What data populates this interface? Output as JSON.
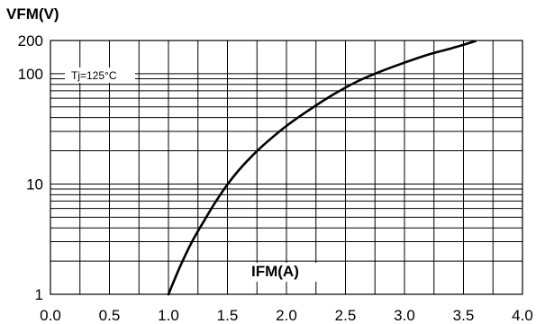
{
  "chart_data": {
    "type": "line",
    "ylabel": "VFM(V)",
    "xlabel": "IFM(A)",
    "x_scale": "linear",
    "y_scale": "log",
    "xlim": [
      0.0,
      4.0
    ],
    "ylim": [
      1,
      200
    ],
    "x_ticks": [
      "0.0",
      "0.5",
      "1.0",
      "1.5",
      "2.0",
      "2.5",
      "3.0",
      "3.5",
      "4.0"
    ],
    "y_ticks": [
      {
        "value": 1,
        "label": "1"
      },
      {
        "value": 10,
        "label": "10"
      },
      {
        "value": 100,
        "label": "100"
      },
      {
        "value": 200,
        "label": "200"
      }
    ],
    "grid": true,
    "annotation": "Tj=125°C",
    "series": [
      {
        "x": [
          1.0,
          1.1,
          1.2,
          1.3,
          1.4,
          1.5,
          1.6,
          1.7,
          1.8,
          2.0,
          2.2,
          2.4,
          2.6,
          2.8,
          3.0,
          3.2,
          3.4,
          3.6
        ],
        "y": [
          1.0,
          1.8,
          3.0,
          4.6,
          6.9,
          9.9,
          13.5,
          17.6,
          22.3,
          33.6,
          47.5,
          65,
          85,
          105,
          126,
          149,
          170,
          197
        ],
        "color": "#000000"
      }
    ]
  }
}
